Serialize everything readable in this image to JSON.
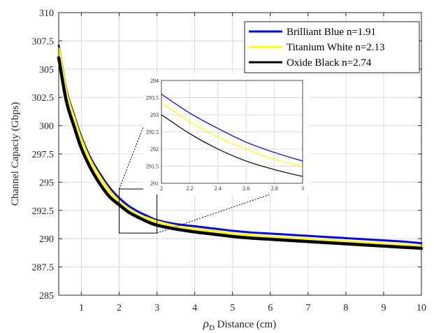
{
  "chart_data": {
    "type": "line",
    "xlabel_symbol": "ρ",
    "xlabel_subscript": "D",
    "xlabel_text": " Distance (cm)",
    "ylabel": "Channel Capaciy (Gbps)",
    "xlim": [
      0.4,
      10
    ],
    "ylim": [
      285,
      310
    ],
    "xticks": [
      1,
      2,
      3,
      4,
      5,
      6,
      7,
      8,
      9,
      10
    ],
    "xtick_labels": [
      "1",
      "2",
      "3",
      "4",
      "5",
      "6",
      "7",
      "8",
      "9",
      "10"
    ],
    "yticks": [
      285,
      287.5,
      290,
      292.5,
      295,
      297.5,
      300,
      302.5,
      305,
      307.5,
      310
    ],
    "ytick_labels": [
      "285",
      "287.5",
      "290",
      "292.5",
      "295",
      "297.5",
      "300",
      "302.5",
      "305",
      "307.5",
      "310"
    ],
    "grid": true,
    "legend_position": "top-right",
    "series": [
      {
        "name": "Brilliant Blue n=1.91",
        "color": "#0000ff",
        "x": [
          0.4,
          0.6,
          0.8,
          1.0,
          1.25,
          1.5,
          1.75,
          2.0,
          2.25,
          2.5,
          2.75,
          3.0,
          3.5,
          4.0,
          4.5,
          5.0,
          5.5,
          6.0,
          6.5,
          7.0,
          7.5,
          8.0,
          8.5,
          9.0,
          9.5,
          10.0
        ],
        "y": [
          307.1,
          303.2,
          301.0,
          299.0,
          297.1,
          295.7,
          294.5,
          293.6,
          292.9,
          292.4,
          292.0,
          291.65,
          291.3,
          291.1,
          290.9,
          290.7,
          290.55,
          290.45,
          290.35,
          290.25,
          290.15,
          290.05,
          289.95,
          289.85,
          289.75,
          289.6
        ]
      },
      {
        "name": "Titanium White n=2.13",
        "color": "#ffff00",
        "x": [
          0.4,
          0.6,
          0.8,
          1.0,
          1.25,
          1.5,
          1.75,
          2.0,
          2.25,
          2.5,
          2.75,
          3.0,
          3.5,
          4.0,
          4.5,
          5.0,
          5.5,
          6.0,
          6.5,
          7.0,
          7.5,
          8.0,
          8.5,
          9.0,
          9.5,
          10.0
        ],
        "y": [
          306.8,
          302.9,
          300.7,
          298.7,
          296.8,
          295.4,
          294.2,
          293.3,
          292.6,
          292.1,
          291.8,
          291.5,
          291.1,
          290.85,
          290.65,
          290.45,
          290.3,
          290.15,
          290.05,
          289.95,
          289.85,
          289.75,
          289.65,
          289.55,
          289.45,
          289.35
        ]
      },
      {
        "name": "Oxide Black n=2.74",
        "color": "#000000",
        "x": [
          0.4,
          0.6,
          0.8,
          1.0,
          1.25,
          1.5,
          1.75,
          2.0,
          2.25,
          2.5,
          2.75,
          3.0,
          3.5,
          4.0,
          4.5,
          5.0,
          5.5,
          6.0,
          6.5,
          7.0,
          7.5,
          8.0,
          8.5,
          9.0,
          9.5,
          10.0
        ],
        "y": [
          306.0,
          302.2,
          300.0,
          298.0,
          296.2,
          294.8,
          293.7,
          293.0,
          292.35,
          291.9,
          291.5,
          291.2,
          290.85,
          290.6,
          290.4,
          290.2,
          290.05,
          289.95,
          289.85,
          289.75,
          289.65,
          289.55,
          289.45,
          289.35,
          289.25,
          289.15
        ]
      }
    ],
    "zoom_box": {
      "xlim": [
        2,
        3
      ],
      "ylim": [
        290.5,
        294.4
      ]
    },
    "inset": {
      "xlim": [
        2,
        3
      ],
      "ylim": [
        291,
        294
      ],
      "xticks": [
        2,
        2.2,
        2.4,
        2.6,
        2.8,
        3
      ],
      "xtick_labels": [
        "2",
        "2.2",
        "2.4",
        "2.6",
        "2.8",
        "3"
      ],
      "yticks": [
        291,
        291.5,
        292,
        292.5,
        293,
        293.5,
        294
      ],
      "ytick_labels": [
        "291",
        "291.5",
        "292",
        "292.5",
        "293",
        "293.5",
        "294"
      ],
      "series": [
        {
          "name": "Brilliant Blue n=1.91",
          "color": "#0000ff",
          "x": [
            2.0,
            2.2,
            2.4,
            2.6,
            2.8,
            3.0
          ],
          "y": [
            293.6,
            293.05,
            292.6,
            292.2,
            291.9,
            291.65
          ]
        },
        {
          "name": "Titanium White n=2.13",
          "color": "#ffff00",
          "x": [
            2.0,
            2.2,
            2.4,
            2.6,
            2.8,
            3.0
          ],
          "y": [
            293.35,
            292.8,
            292.35,
            292.0,
            291.7,
            291.5
          ]
        },
        {
          "name": "Oxide Black n=2.74",
          "color": "#000000",
          "x": [
            2.0,
            2.2,
            2.4,
            2.6,
            2.8,
            3.0
          ],
          "y": [
            293.0,
            292.45,
            292.0,
            291.65,
            291.4,
            291.2
          ]
        }
      ]
    }
  }
}
